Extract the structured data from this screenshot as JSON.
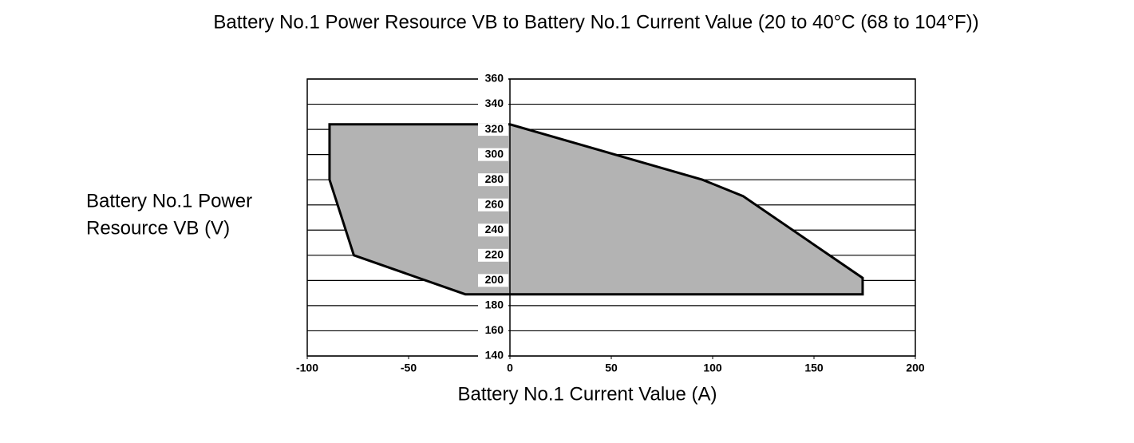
{
  "chart_data": {
    "type": "polygon",
    "title": "Battery No.1 Power Resource VB  to Battery No.1 Current Value (20 to 40°C (68 to 104°F))",
    "xlabel": "Battery No.1 Current Value (A)",
    "ylabel": [
      "Battery No.1 Power",
      "Resource VB (V)"
    ],
    "series": [
      {
        "x": [
          -89,
          0,
          95,
          115,
          174,
          174,
          -22,
          -77,
          -89
        ],
        "values": [
          324,
          324,
          280,
          267,
          202,
          189,
          189,
          220,
          280
        ],
        "color": "#b3b3b3"
      }
    ],
    "xlim": [
      -100,
      200
    ],
    "xticks": [
      -100,
      -50,
      0,
      50,
      100,
      150,
      200
    ],
    "ylim": [
      140,
      360
    ],
    "yticks": [
      140,
      160,
      180,
      200,
      220,
      240,
      260,
      280,
      300,
      320,
      340,
      360
    ],
    "grid": true
  }
}
